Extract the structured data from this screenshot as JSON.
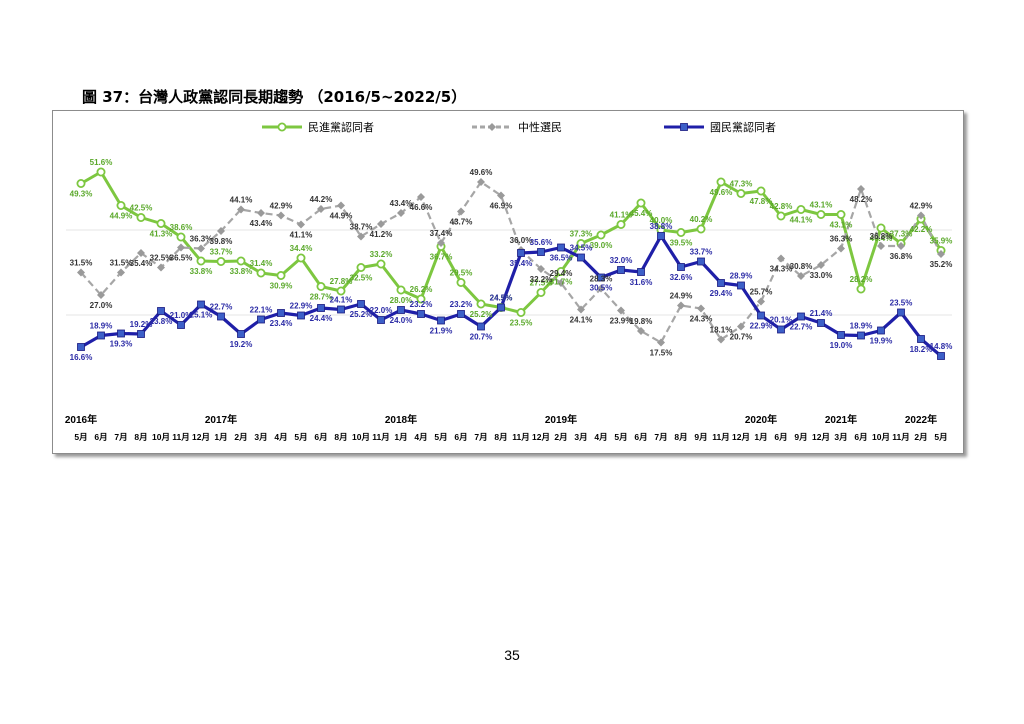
{
  "figure_title": "圖 37：台灣人政黨認同長期趨勢 （2016/5~2022/5）",
  "page_number": "35",
  "chart_data": {
    "type": "line",
    "title": "圖 37：台灣人政黨認同長期趨勢 （2016/5~2022/5）",
    "xlabel": "",
    "ylabel": "",
    "ylim": [
      10,
      55
    ],
    "grid": false,
    "legend_position": "top",
    "categories": [
      "5月",
      "6月",
      "7月",
      "8月",
      "10月",
      "11月",
      "12月",
      "1月",
      "2月",
      "3月",
      "4月",
      "5月",
      "6月",
      "8月",
      "10月",
      "11月",
      "1月",
      "4月",
      "5月",
      "6月",
      "7月",
      "8月",
      "11月",
      "12月",
      "2月",
      "3月",
      "4月",
      "5月",
      "6月",
      "7月",
      "8月",
      "9月",
      "11月",
      "12月",
      "1月",
      "6月",
      "9月",
      "12月",
      "3月",
      "6月",
      "10月",
      "11月",
      "2月",
      "5月"
    ],
    "year_labels": [
      {
        "label": "2016年",
        "index": 0
      },
      {
        "label": "2017年",
        "index": 7
      },
      {
        "label": "2018年",
        "index": 16
      },
      {
        "label": "2019年",
        "index": 24
      },
      {
        "label": "2020年",
        "index": 34
      },
      {
        "label": "2021年",
        "index": 38
      },
      {
        "label": "2022年",
        "index": 42
      }
    ],
    "series": [
      {
        "name": "民進黨認同者",
        "color": "#7dc740",
        "label_color": "#5aa82a",
        "marker": "circle",
        "values": [
          49.3,
          51.6,
          44.9,
          42.5,
          41.3,
          38.6,
          33.8,
          33.7,
          33.8,
          31.4,
          30.9,
          34.4,
          28.7,
          27.8,
          32.5,
          33.2,
          28.0,
          26.2,
          36.7,
          29.5,
          25.2,
          24.5,
          23.5,
          27.5,
          31.7,
          37.3,
          39.0,
          41.1,
          45.4,
          40.0,
          39.5,
          40.2,
          49.6,
          47.3,
          47.8,
          42.8,
          44.1,
          43.1,
          43.1,
          28.2,
          40.4,
          37.3,
          42.2,
          35.9
        ]
      },
      {
        "name": "中性選民",
        "color": "#a6a6a6",
        "label_color": "#333333",
        "marker": "diamond",
        "values": [
          31.5,
          27.0,
          31.5,
          35.4,
          32.5,
          36.5,
          36.3,
          39.8,
          44.1,
          43.4,
          42.9,
          41.1,
          44.2,
          44.9,
          38.7,
          41.2,
          43.4,
          46.6,
          37.4,
          43.7,
          49.6,
          46.9,
          36.0,
          32.2,
          29.4,
          24.1,
          28.3,
          23.9,
          19.8,
          17.5,
          24.9,
          24.3,
          18.1,
          20.7,
          25.7,
          34.3,
          30.8,
          33.0,
          36.3,
          48.2,
          36.8,
          36.8,
          42.9,
          35.2
        ]
      },
      {
        "name": "國民黨認同者",
        "color": "#1f1fa8",
        "label_color": "#2a2aa5",
        "marker": "square",
        "values": [
          16.6,
          18.9,
          19.3,
          19.2,
          23.8,
          21.0,
          25.1,
          22.7,
          19.2,
          22.1,
          23.4,
          22.9,
          24.4,
          24.1,
          25.2,
          22.0,
          24.0,
          23.2,
          21.9,
          23.2,
          20.7,
          24.5,
          35.4,
          35.6,
          36.5,
          34.5,
          30.5,
          32.0,
          31.6,
          38.8,
          32.6,
          33.7,
          29.4,
          28.9,
          22.9,
          20.1,
          22.7,
          21.4,
          19.0,
          18.9,
          19.9,
          23.5,
          18.2,
          14.8
        ]
      }
    ]
  }
}
